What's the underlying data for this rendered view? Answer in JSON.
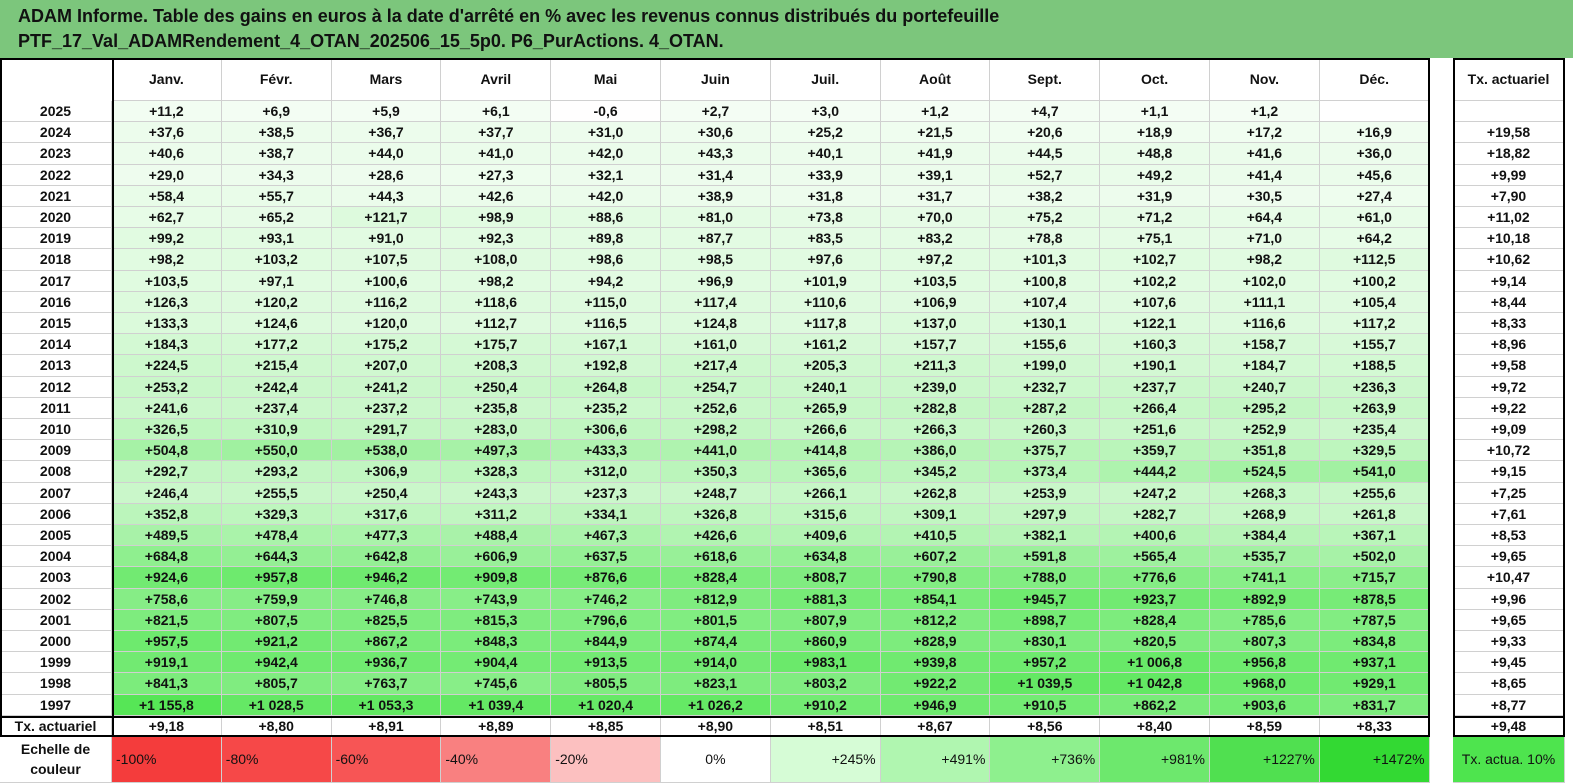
{
  "header": {
    "title_line1": "ADAM Informe. Table des gains en euros à la date d'arrêté en % avec les revenus connus distribués du portefeuille",
    "title_line2": "PTF_17_Val_ADAMRendement_4_OTAN_202506_15_5p0. P6_PurActions. 4_OTAN."
  },
  "table": {
    "columns": [
      "Janv.",
      "Févr.",
      "Mars",
      "Avril",
      "Mai",
      "Juin",
      "Juil.",
      "Août",
      "Sept.",
      "Oct.",
      "Nov.",
      "Déc."
    ],
    "tx_column": "Tx. actuariel",
    "rows": [
      {
        "year": "2025",
        "values": [
          "+11,2",
          "+6,9",
          "+5,9",
          "+6,1",
          "-0,6",
          "+2,7",
          "+3,0",
          "+1,2",
          "+4,7",
          "+1,1",
          "+1,2",
          null
        ],
        "tx": null
      },
      {
        "year": "2024",
        "values": [
          "+37,6",
          "+38,5",
          "+36,7",
          "+37,7",
          "+31,0",
          "+30,6",
          "+25,2",
          "+21,5",
          "+20,6",
          "+18,9",
          "+17,2",
          "+16,9"
        ],
        "tx": "+19,58"
      },
      {
        "year": "2023",
        "values": [
          "+40,6",
          "+38,7",
          "+44,0",
          "+41,0",
          "+42,0",
          "+43,3",
          "+40,1",
          "+41,9",
          "+44,5",
          "+48,8",
          "+41,6",
          "+36,0"
        ],
        "tx": "+18,82"
      },
      {
        "year": "2022",
        "values": [
          "+29,0",
          "+34,3",
          "+28,6",
          "+27,3",
          "+32,1",
          "+31,4",
          "+33,9",
          "+39,1",
          "+52,7",
          "+49,2",
          "+41,4",
          "+45,6"
        ],
        "tx": "+9,99"
      },
      {
        "year": "2021",
        "values": [
          "+58,4",
          "+55,7",
          "+44,3",
          "+42,6",
          "+42,0",
          "+38,9",
          "+31,8",
          "+31,7",
          "+38,2",
          "+31,9",
          "+30,5",
          "+27,4"
        ],
        "tx": "+7,90"
      },
      {
        "year": "2020",
        "values": [
          "+62,7",
          "+65,2",
          "+121,7",
          "+98,9",
          "+88,6",
          "+81,0",
          "+73,8",
          "+70,0",
          "+75,2",
          "+71,2",
          "+64,4",
          "+61,0"
        ],
        "tx": "+11,02"
      },
      {
        "year": "2019",
        "values": [
          "+99,2",
          "+93,1",
          "+91,0",
          "+92,3",
          "+89,8",
          "+87,7",
          "+83,5",
          "+83,2",
          "+78,8",
          "+75,1",
          "+71,0",
          "+64,2"
        ],
        "tx": "+10,18"
      },
      {
        "year": "2018",
        "values": [
          "+98,2",
          "+103,2",
          "+107,5",
          "+108,0",
          "+98,6",
          "+98,5",
          "+97,6",
          "+97,2",
          "+101,3",
          "+102,7",
          "+98,2",
          "+112,5"
        ],
        "tx": "+10,62"
      },
      {
        "year": "2017",
        "values": [
          "+103,5",
          "+97,1",
          "+100,6",
          "+98,2",
          "+94,2",
          "+96,9",
          "+101,9",
          "+103,5",
          "+100,8",
          "+102,2",
          "+102,0",
          "+100,2"
        ],
        "tx": "+9,14"
      },
      {
        "year": "2016",
        "values": [
          "+126,3",
          "+120,2",
          "+116,2",
          "+118,6",
          "+115,0",
          "+117,4",
          "+110,6",
          "+106,9",
          "+107,4",
          "+107,6",
          "+111,1",
          "+105,4"
        ],
        "tx": "+8,44"
      },
      {
        "year": "2015",
        "values": [
          "+133,3",
          "+124,6",
          "+120,0",
          "+112,7",
          "+116,5",
          "+124,8",
          "+117,8",
          "+137,0",
          "+130,1",
          "+122,1",
          "+116,6",
          "+117,2"
        ],
        "tx": "+8,33"
      },
      {
        "year": "2014",
        "values": [
          "+184,3",
          "+177,2",
          "+175,2",
          "+175,7",
          "+167,1",
          "+161,0",
          "+161,2",
          "+157,7",
          "+155,6",
          "+160,3",
          "+158,7",
          "+155,7"
        ],
        "tx": "+8,96"
      },
      {
        "year": "2013",
        "values": [
          "+224,5",
          "+215,4",
          "+207,0",
          "+208,3",
          "+192,8",
          "+217,4",
          "+205,3",
          "+211,3",
          "+199,0",
          "+190,1",
          "+184,7",
          "+188,5"
        ],
        "tx": "+9,58"
      },
      {
        "year": "2012",
        "values": [
          "+253,2",
          "+242,4",
          "+241,2",
          "+250,4",
          "+264,8",
          "+254,7",
          "+240,1",
          "+239,0",
          "+232,7",
          "+237,7",
          "+240,7",
          "+236,3"
        ],
        "tx": "+9,72"
      },
      {
        "year": "2011",
        "values": [
          "+241,6",
          "+237,4",
          "+237,2",
          "+235,8",
          "+235,2",
          "+252,6",
          "+265,9",
          "+282,8",
          "+287,2",
          "+266,4",
          "+295,2",
          "+263,9"
        ],
        "tx": "+9,22"
      },
      {
        "year": "2010",
        "values": [
          "+326,5",
          "+310,9",
          "+291,7",
          "+283,0",
          "+306,6",
          "+298,2",
          "+266,6",
          "+266,3",
          "+260,3",
          "+251,6",
          "+252,9",
          "+235,4"
        ],
        "tx": "+9,09"
      },
      {
        "year": "2009",
        "values": [
          "+504,8",
          "+550,0",
          "+538,0",
          "+497,3",
          "+433,3",
          "+441,0",
          "+414,8",
          "+386,0",
          "+375,7",
          "+359,7",
          "+351,8",
          "+329,5"
        ],
        "tx": "+10,72"
      },
      {
        "year": "2008",
        "values": [
          "+292,7",
          "+293,2",
          "+306,9",
          "+328,3",
          "+312,0",
          "+350,3",
          "+365,6",
          "+345,2",
          "+373,4",
          "+444,2",
          "+524,5",
          "+541,0"
        ],
        "tx": "+9,15"
      },
      {
        "year": "2007",
        "values": [
          "+246,4",
          "+255,5",
          "+250,4",
          "+243,3",
          "+237,3",
          "+248,7",
          "+266,1",
          "+262,8",
          "+253,9",
          "+247,2",
          "+268,3",
          "+255,6"
        ],
        "tx": "+7,25"
      },
      {
        "year": "2006",
        "values": [
          "+352,8",
          "+329,3",
          "+317,6",
          "+311,2",
          "+334,1",
          "+326,8",
          "+315,6",
          "+309,1",
          "+297,9",
          "+282,7",
          "+268,9",
          "+261,8"
        ],
        "tx": "+7,61"
      },
      {
        "year": "2005",
        "values": [
          "+489,5",
          "+478,4",
          "+477,3",
          "+488,4",
          "+467,3",
          "+426,6",
          "+409,6",
          "+410,5",
          "+382,1",
          "+400,6",
          "+384,4",
          "+367,1"
        ],
        "tx": "+8,53"
      },
      {
        "year": "2004",
        "values": [
          "+684,8",
          "+644,3",
          "+642,8",
          "+606,9",
          "+637,5",
          "+618,6",
          "+634,8",
          "+607,2",
          "+591,8",
          "+565,4",
          "+535,7",
          "+502,0"
        ],
        "tx": "+9,65"
      },
      {
        "year": "2003",
        "values": [
          "+924,6",
          "+957,8",
          "+946,2",
          "+909,8",
          "+876,6",
          "+828,4",
          "+808,7",
          "+790,8",
          "+788,0",
          "+776,6",
          "+741,1",
          "+715,7"
        ],
        "tx": "+10,47"
      },
      {
        "year": "2002",
        "values": [
          "+758,6",
          "+759,9",
          "+746,8",
          "+743,9",
          "+746,2",
          "+812,9",
          "+881,3",
          "+854,1",
          "+945,7",
          "+923,7",
          "+892,9",
          "+878,5"
        ],
        "tx": "+9,96"
      },
      {
        "year": "2001",
        "values": [
          "+821,5",
          "+807,5",
          "+825,5",
          "+815,3",
          "+796,6",
          "+801,5",
          "+807,9",
          "+812,2",
          "+898,7",
          "+828,4",
          "+785,6",
          "+787,5"
        ],
        "tx": "+9,65"
      },
      {
        "year": "2000",
        "values": [
          "+957,5",
          "+921,2",
          "+867,2",
          "+848,3",
          "+844,9",
          "+874,4",
          "+860,9",
          "+828,9",
          "+830,1",
          "+820,5",
          "+807,3",
          "+834,8"
        ],
        "tx": "+9,33"
      },
      {
        "year": "1999",
        "values": [
          "+919,1",
          "+942,4",
          "+936,7",
          "+904,4",
          "+913,5",
          "+914,0",
          "+983,1",
          "+939,8",
          "+957,2",
          "+1 006,8",
          "+956,8",
          "+937,1"
        ],
        "tx": "+9,45"
      },
      {
        "year": "1998",
        "values": [
          "+841,3",
          "+805,7",
          "+763,7",
          "+745,6",
          "+805,5",
          "+823,1",
          "+803,2",
          "+922,2",
          "+1 039,5",
          "+1 042,8",
          "+968,0",
          "+929,1"
        ],
        "tx": "+8,65"
      },
      {
        "year": "1997",
        "values": [
          "+1 155,8",
          "+1 028,5",
          "+1 053,3",
          "+1 039,4",
          "+1 020,4",
          "+1 026,2",
          "+910,2",
          "+946,9",
          "+910,5",
          "+862,2",
          "+903,6",
          "+831,7"
        ],
        "tx": "+8,77"
      }
    ]
  },
  "footer": {
    "label": "Tx. actuariel",
    "values": [
      "+9,18",
      "+8,80",
      "+8,91",
      "+8,89",
      "+8,85",
      "+8,90",
      "+8,51",
      "+8,67",
      "+8,56",
      "+8,40",
      "+8,59",
      "+8,33"
    ],
    "tx": "+9,48"
  },
  "legend": {
    "label": "Echelle de couleur",
    "steps": [
      "-100%",
      "-80%",
      "-60%",
      "-40%",
      "-20%",
      "0%",
      "+245%",
      "+491%",
      "+736%",
      "+981%",
      "+1227%",
      "+1472%"
    ],
    "tx": "Tx. actua. 10%"
  }
}
